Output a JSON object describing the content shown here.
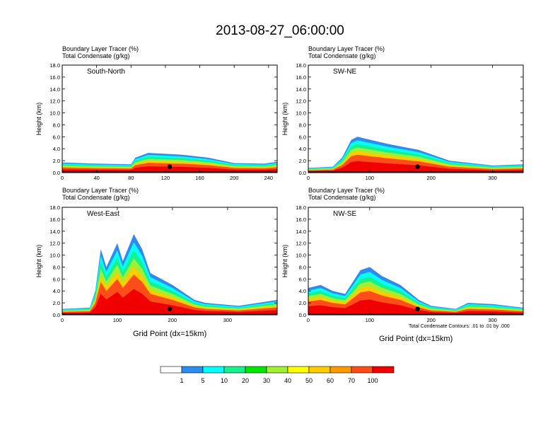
{
  "title": "2013-08-27_06:00:00",
  "subtitle_line1": "Boundary Layer Tracer    (%)",
  "subtitle_line2": "Total Condensate    (g/kg)",
  "xlabel": "Grid Point (dx=15km)",
  "ylabel": "Height (km)",
  "footnote": "Total Condensate Contours: .01 to .01 by .000",
  "colorbar": {
    "colors": [
      "#ffffff",
      "#2d8cf0",
      "#00ffff",
      "#18f08c",
      "#00e600",
      "#a0ef32",
      "#ffff00",
      "#ffcc00",
      "#ff9900",
      "#ff4d1a",
      "#f00000"
    ],
    "labels": [
      "1",
      "5",
      "10",
      "20",
      "30",
      "40",
      "50",
      "60",
      "70",
      "100"
    ]
  },
  "chart_data": [
    {
      "type": "heatmap",
      "panel": "South-North",
      "title": "South-North",
      "xlabel": "",
      "ylabel": "Height (km)",
      "xlim": [
        0,
        250
      ],
      "ylim": [
        0,
        18
      ],
      "xticks": [
        0,
        40,
        80,
        120,
        160,
        200,
        240
      ],
      "yticks": [
        "0.0",
        "2.0",
        "4.0",
        "6.0",
        "8.0",
        "10.0",
        "12.0",
        "14.0",
        "16.0",
        "18.0"
      ],
      "tracer_top_km": [
        [
          0,
          1.7
        ],
        [
          40,
          1.5
        ],
        [
          80,
          1.4
        ],
        [
          85,
          2.5
        ],
        [
          100,
          3.3
        ],
        [
          140,
          3.0
        ],
        [
          170,
          2.5
        ],
        [
          200,
          1.6
        ],
        [
          235,
          1.5
        ],
        [
          250,
          1.8
        ]
      ],
      "marker": [
        125,
        1.0
      ]
    },
    {
      "type": "heatmap",
      "panel": "SW-NE",
      "title": "SW-NE",
      "xlabel": "",
      "ylabel": "Height (km)",
      "xlim": [
        0,
        350
      ],
      "ylim": [
        0,
        18
      ],
      "xticks": [
        0,
        100,
        200,
        300
      ],
      "yticks": [
        "0.0",
        "2.0",
        "4.0",
        "6.0",
        "8.0",
        "10.0",
        "12.0",
        "14.0",
        "16.0",
        "18.0"
      ],
      "tracer_top_km": [
        [
          0,
          0.8
        ],
        [
          40,
          1.0
        ],
        [
          55,
          2.5
        ],
        [
          70,
          5.5
        ],
        [
          80,
          6.0
        ],
        [
          130,
          4.8
        ],
        [
          180,
          3.8
        ],
        [
          230,
          2.0
        ],
        [
          300,
          1.2
        ],
        [
          350,
          1.4
        ]
      ],
      "marker": [
        178,
        1.0
      ]
    },
    {
      "type": "heatmap",
      "panel": "West-East",
      "title": "West-East",
      "xlabel": "Grid Point (dx=15km)",
      "ylabel": "Height (km)",
      "xlim": [
        0,
        390
      ],
      "ylim": [
        0,
        18
      ],
      "xticks": [
        0,
        100,
        200,
        300
      ],
      "yticks": [
        "0.0",
        "2.0",
        "4.0",
        "6.0",
        "8.0",
        "10.0",
        "12.0",
        "14.0",
        "16.0",
        "18.0"
      ],
      "tracer_top_km": [
        [
          0,
          1.0
        ],
        [
          50,
          1.2
        ],
        [
          60,
          4.0
        ],
        [
          70,
          11.0
        ],
        [
          80,
          8.0
        ],
        [
          100,
          12.0
        ],
        [
          110,
          9.0
        ],
        [
          130,
          13.5
        ],
        [
          145,
          11.0
        ],
        [
          160,
          7.0
        ],
        [
          200,
          5.0
        ],
        [
          240,
          2.5
        ],
        [
          260,
          2.0
        ],
        [
          320,
          1.5
        ],
        [
          390,
          2.5
        ]
      ],
      "marker": [
        195,
        1.0
      ]
    },
    {
      "type": "heatmap",
      "panel": "NW-SE",
      "title": "NW-SE",
      "xlabel": "Grid Point (dx=15km)",
      "ylabel": "Height (km)",
      "xlim": [
        0,
        350
      ],
      "ylim": [
        0,
        18
      ],
      "xticks": [
        0,
        100,
        200,
        300
      ],
      "yticks": [
        "0.0",
        "2.0",
        "4.0",
        "6.0",
        "8.0",
        "10.0",
        "12.0",
        "14.0",
        "16.0",
        "18.0"
      ],
      "tracer_top_km": [
        [
          0,
          4.5
        ],
        [
          20,
          5.0
        ],
        [
          40,
          4.0
        ],
        [
          60,
          3.5
        ],
        [
          85,
          7.5
        ],
        [
          100,
          8.0
        ],
        [
          120,
          6.5
        ],
        [
          150,
          5.0
        ],
        [
          180,
          2.5
        ],
        [
          200,
          1.5
        ],
        [
          240,
          1.0
        ],
        [
          260,
          2.0
        ],
        [
          300,
          1.8
        ],
        [
          350,
          1.2
        ]
      ],
      "marker": [
        178,
        1.0
      ]
    }
  ]
}
